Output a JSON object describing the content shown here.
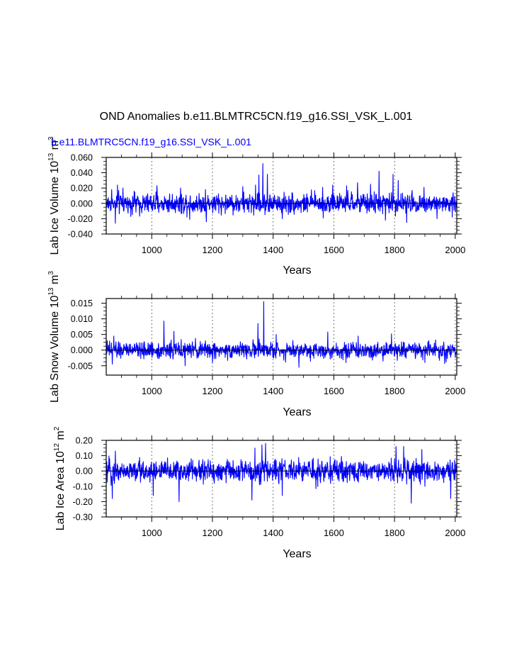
{
  "page": {
    "title": "OND Anomalies b.e11.BLMTRC5CN.f19_g16.SSI_VSK_L.001"
  },
  "colors": {
    "series": "#0000ff",
    "axis": "#000000",
    "grid": "#555555"
  },
  "chart_data": [
    {
      "type": "line",
      "subtitle": "b.e11.BLMTRC5CN.f19_g16.SSI_VSK_L.001",
      "xlabel": "Years",
      "ylabel": "Lab Ice Volume 10",
      "ylabel_sup": "13",
      "ylabel_unit": " m",
      "ylabel_unit_sup": "3",
      "xlim": [
        850,
        2005
      ],
      "ylim": [
        -0.04,
        0.06
      ],
      "xticks": [
        1000,
        1200,
        1400,
        1600,
        1800,
        2000
      ],
      "xtick_labels": [
        "1000",
        "1200",
        "1400",
        "1600",
        "1800",
        "2000"
      ],
      "yticks": [
        -0.04,
        -0.02,
        0.0,
        0.02,
        0.04,
        0.06
      ],
      "ytick_labels": [
        "-0.040",
        "-0.020",
        "0.000",
        "0.020",
        "0.040",
        "0.060"
      ],
      "grid": "vertical dashed at x ticks",
      "series": [
        {
          "color": "#0000ff",
          "amplitude": 0.011,
          "x": [
            850,
            2005
          ],
          "peaks": [
            [
              868,
              0.018
            ],
            [
              887,
              0.024
            ],
            [
              905,
              0.02
            ],
            [
              942,
              0.016
            ],
            [
              1017,
              0.023
            ],
            [
              1095,
              0.02
            ],
            [
              1177,
              0.018
            ],
            [
              1300,
              0.022
            ],
            [
              1342,
              0.024
            ],
            [
              1353,
              0.037
            ],
            [
              1366,
              0.052
            ],
            [
              1381,
              0.038
            ],
            [
              1563,
              0.021
            ],
            [
              1596,
              0.024
            ],
            [
              1642,
              0.023
            ],
            [
              1678,
              0.027
            ],
            [
              1721,
              0.025
            ],
            [
              1749,
              0.042
            ],
            [
              1795,
              0.038
            ],
            [
              1812,
              0.03
            ],
            [
              1858,
              0.017
            ],
            [
              1897,
              0.021
            ]
          ],
          "troughs": [
            [
              880,
              -0.026
            ],
            [
              1125,
              -0.021
            ],
            [
              1180,
              -0.024
            ],
            [
              1430,
              -0.02
            ],
            [
              1565,
              -0.019
            ],
            [
              1770,
              -0.022
            ],
            [
              1840,
              -0.025
            ],
            [
              1940,
              -0.02
            ],
            [
              1990,
              -0.018
            ]
          ]
        }
      ]
    },
    {
      "type": "line",
      "subtitle": "",
      "xlabel": "Years",
      "ylabel": "Lab Snow Volume 10",
      "ylabel_sup": "13",
      "ylabel_unit": " m",
      "ylabel_unit_sup": "3",
      "xlim": [
        850,
        2005
      ],
      "ylim": [
        -0.008,
        0.0165
      ],
      "xticks": [
        1000,
        1200,
        1400,
        1600,
        1800,
        2000
      ],
      "xtick_labels": [
        "1000",
        "1200",
        "1400",
        "1600",
        "1800",
        "2000"
      ],
      "yticks": [
        -0.005,
        0.0,
        0.005,
        0.01,
        0.015
      ],
      "ytick_labels": [
        "-0.005",
        "0.000",
        "0.005",
        "0.010",
        "0.015"
      ],
      "grid": "vertical dashed at x ticks",
      "series": [
        {
          "color": "#0000ff",
          "amplitude": 0.0022,
          "x": [
            850,
            2005
          ],
          "peaks": [
            [
              875,
              0.0045
            ],
            [
              1040,
              0.0093
            ],
            [
              1073,
              0.006
            ],
            [
              1350,
              0.0085
            ],
            [
              1369,
              0.0155
            ],
            [
              1410,
              0.005
            ],
            [
              1580,
              0.0058
            ],
            [
              1680,
              0.0045
            ],
            [
              1790,
              0.0052
            ]
          ],
          "troughs": [
            [
              870,
              -0.0045
            ],
            [
              1110,
              -0.005
            ],
            [
              1200,
              -0.004
            ],
            [
              1485,
              -0.0055
            ],
            [
              1640,
              -0.004
            ],
            [
              1900,
              -0.004
            ],
            [
              1965,
              -0.0043
            ]
          ]
        }
      ]
    },
    {
      "type": "line",
      "subtitle": "",
      "xlabel": "Years",
      "ylabel": "Lab Ice Area 10",
      "ylabel_sup": "12",
      "ylabel_unit": " m",
      "ylabel_unit_sup": "2",
      "xlim": [
        850,
        2005
      ],
      "ylim": [
        -0.3,
        0.2
      ],
      "xticks": [
        1000,
        1200,
        1400,
        1600,
        1800,
        2000
      ],
      "xtick_labels": [
        "1000",
        "1200",
        "1400",
        "1600",
        "1800",
        "2000"
      ],
      "yticks": [
        -0.3,
        -0.2,
        -0.1,
        0.0,
        0.1,
        0.2
      ],
      "ytick_labels": [
        "-0.30",
        "-0.20",
        "-0.10",
        "0.00",
        "0.10",
        "0.20"
      ],
      "grid": "vertical dashed at x ticks",
      "series": [
        {
          "color": "#0000ff",
          "amplitude": 0.062,
          "x": [
            850,
            2005
          ],
          "peaks": [
            [
              880,
              0.13
            ],
            [
              1340,
              0.15
            ],
            [
              1363,
              0.17
            ],
            [
              1375,
              0.18
            ],
            [
              1805,
              0.16
            ],
            [
              1830,
              0.16
            ],
            [
              1890,
              0.14
            ]
          ],
          "troughs": [
            [
              870,
              -0.18
            ],
            [
              1005,
              -0.16
            ],
            [
              1090,
              -0.2
            ],
            [
              1330,
              -0.19
            ],
            [
              1430,
              -0.16
            ],
            [
              1855,
              -0.21
            ],
            [
              1985,
              -0.18
            ]
          ]
        }
      ]
    }
  ]
}
